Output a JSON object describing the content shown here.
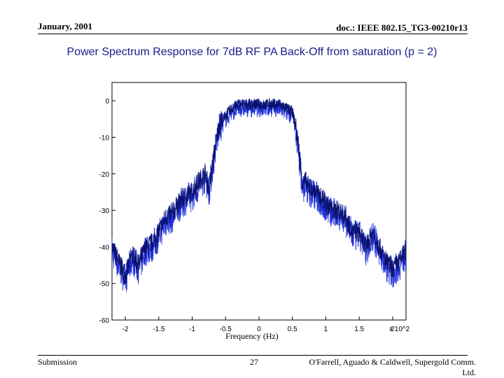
{
  "header": {
    "date": "January, 2001",
    "doc_id": "doc.: IEEE 802.15_TG3-00210r13"
  },
  "slide_title": "Power Spectrum Response for 7dB RF PA Back-Off from saturation (p = 2)",
  "footer": {
    "left": "Submission",
    "page": "27",
    "right": "O'Farrell, Aguado & Caldwell, Supergold Comm. Ltd."
  },
  "colors": {
    "title": "#1a1a8c",
    "trace": "#1f2fd6",
    "trace_dark": "#0a1270"
  },
  "chart_data": {
    "type": "line",
    "title": "",
    "xlabel": "Frequency (Hz)",
    "ylabel": "",
    "x_multiplier": "x 10^2",
    "xlim": [
      -2.2,
      2.2
    ],
    "ylim": [
      -60,
      5
    ],
    "xticks": [
      -2,
      -1.5,
      -1,
      -0.5,
      0,
      0.5,
      1,
      1.5,
      2
    ],
    "xtick_labels": [
      "-2",
      "-1.5",
      "-1",
      "-0.5",
      "0",
      "0.5",
      "1",
      "1.5",
      "2"
    ],
    "yticks": [
      0,
      -10,
      -20,
      -30,
      -40,
      -50,
      -60
    ],
    "ytick_labels": [
      "0",
      "-10",
      "-20",
      "-30",
      "-40",
      "-50",
      "-60"
    ],
    "grid": false,
    "series": [
      {
        "x": [
          -2.2,
          -2.1,
          -2.0,
          -1.9,
          -1.8,
          -1.7,
          -1.6,
          -1.5,
          -1.4,
          -1.3,
          -1.2,
          -1.1,
          -1.0,
          -0.9,
          -0.8,
          -0.75,
          -0.7,
          -0.65,
          -0.6,
          -0.5,
          -0.4,
          -0.3,
          -0.2,
          -0.1,
          0.0,
          0.1,
          0.2,
          0.3,
          0.4,
          0.5,
          0.55,
          0.6,
          0.65,
          0.7,
          0.75,
          0.8,
          0.9,
          1.0,
          1.1,
          1.2,
          1.3,
          1.4,
          1.5,
          1.6,
          1.7,
          1.8,
          1.9,
          2.0,
          2.1,
          2.2
        ],
        "y": [
          -40,
          -44,
          -48,
          -42,
          -45,
          -40,
          -39,
          -36,
          -32,
          -31,
          -28,
          -26,
          -25,
          -22,
          -20,
          -24,
          -18,
          -12,
          -7,
          -4,
          -2,
          -1,
          -1,
          -1,
          -1,
          -1,
          -1,
          -1,
          -2,
          -3,
          -7,
          -14,
          -23,
          -22,
          -24,
          -24,
          -26,
          -28,
          -30,
          -30,
          -32,
          -36,
          -36,
          -40,
          -36,
          -40,
          -44,
          -46,
          -44,
          -41
        ]
      }
    ]
  }
}
